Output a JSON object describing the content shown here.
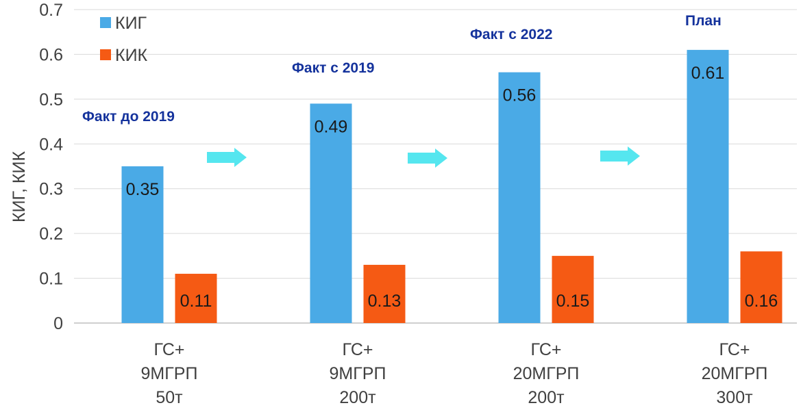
{
  "chart_data": {
    "type": "bar",
    "ylabel": "КИГ, КИК",
    "ylim": [
      0,
      0.7
    ],
    "yticks": [
      "0",
      "0.1",
      "0.2",
      "0.3",
      "0.4",
      "0.5",
      "0.6",
      "0.7"
    ],
    "grid": true,
    "legend_position": "top-left",
    "categories": [
      [
        "ГС+",
        "9МГРП",
        "50т"
      ],
      [
        "ГС+",
        "9МГРП",
        "200т"
      ],
      [
        "ГС+",
        "20МГРП",
        "200т"
      ],
      [
        "ГС+",
        "20МГРП",
        "300т"
      ]
    ],
    "series": [
      {
        "name": "КИГ",
        "color": "#4aaae6",
        "values": [
          0.35,
          0.49,
          0.56,
          0.61
        ],
        "labels": [
          "0.35",
          "0.49",
          "0.56",
          "0.61"
        ]
      },
      {
        "name": "КИК",
        "color": "#f55a14",
        "values": [
          0.11,
          0.13,
          0.15,
          0.16
        ],
        "labels": [
          "0.11",
          "0.13",
          "0.15",
          "0.16"
        ]
      }
    ],
    "annotations": [
      "Факт до 2019",
      "Факт с 2019",
      "Факт с 2022",
      "План"
    ],
    "arrow_color": "#55e6ef"
  }
}
